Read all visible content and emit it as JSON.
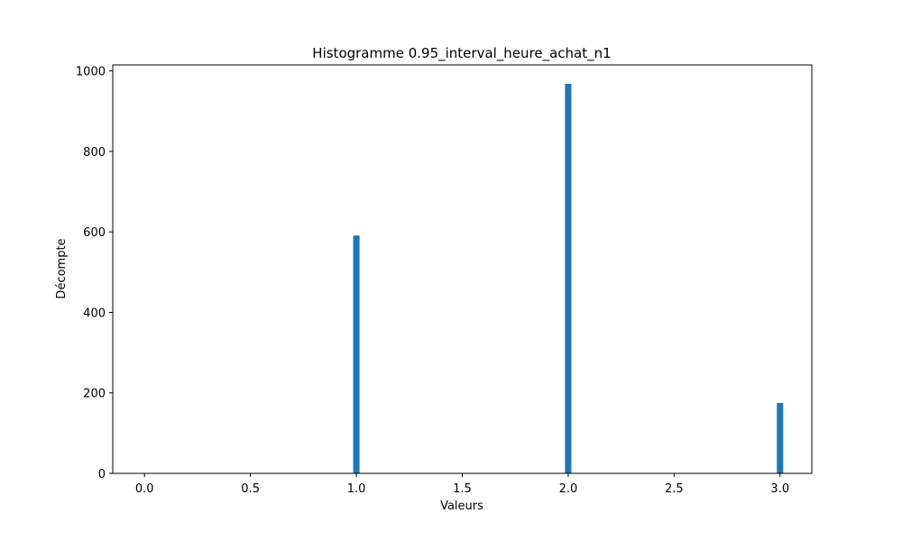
{
  "chart_data": {
    "type": "bar",
    "title": "Histogramme 0.95_interval_heure_achat_n1",
    "xlabel": "Valeurs",
    "ylabel": "Décompte",
    "xlim": [
      -0.15,
      3.15
    ],
    "ylim": [
      0,
      1015
    ],
    "x_ticks": [
      0.0,
      0.5,
      1.0,
      1.5,
      2.0,
      2.5,
      3.0
    ],
    "x_tick_labels": [
      "0.0",
      "0.5",
      "1.0",
      "1.5",
      "2.0",
      "2.5",
      "3.0"
    ],
    "y_ticks": [
      0,
      200,
      400,
      600,
      800,
      1000
    ],
    "y_tick_labels": [
      "0",
      "200",
      "400",
      "600",
      "800",
      "1000"
    ],
    "bin_width": 0.03,
    "bins": [
      {
        "x": 0.0,
        "count": 0
      },
      {
        "x": 1.0,
        "count": 591
      },
      {
        "x": 2.0,
        "count": 968
      },
      {
        "x": 3.0,
        "count": 175
      }
    ],
    "bar_color": "#1f77b4",
    "grid": false,
    "legend": "none"
  }
}
